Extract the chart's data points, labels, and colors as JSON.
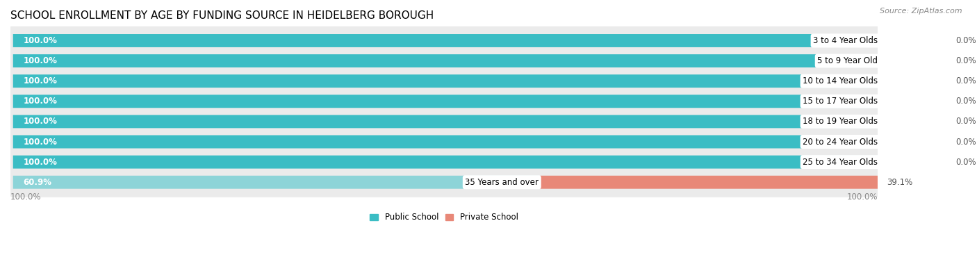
{
  "title": "SCHOOL ENROLLMENT BY AGE BY FUNDING SOURCE IN HEIDELBERG BOROUGH",
  "source": "Source: ZipAtlas.com",
  "categories": [
    "3 to 4 Year Olds",
    "5 to 9 Year Old",
    "10 to 14 Year Olds",
    "15 to 17 Year Olds",
    "18 to 19 Year Olds",
    "20 to 24 Year Olds",
    "25 to 34 Year Olds",
    "35 Years and over"
  ],
  "public_values": [
    100.0,
    100.0,
    100.0,
    100.0,
    100.0,
    100.0,
    100.0,
    60.9
  ],
  "private_values": [
    0.0,
    0.0,
    0.0,
    0.0,
    0.0,
    0.0,
    0.0,
    39.1
  ],
  "public_color": "#3BBDC4",
  "public_color_light": "#8DD4D8",
  "private_color": "#E88878",
  "private_color_light": "#F0AFA8",
  "bg_color": "#FFFFFF",
  "row_bg_color": "#EBEBEB",
  "row_bg_color2": "#F5F5F5",
  "legend_public": "Public School",
  "legend_private": "Private School",
  "title_fontsize": 11,
  "source_fontsize": 8,
  "bar_label_fontsize": 8.5,
  "category_fontsize": 8.5,
  "axis_fontsize": 8.5,
  "axis_left": "100.0%",
  "axis_right": "100.0%"
}
